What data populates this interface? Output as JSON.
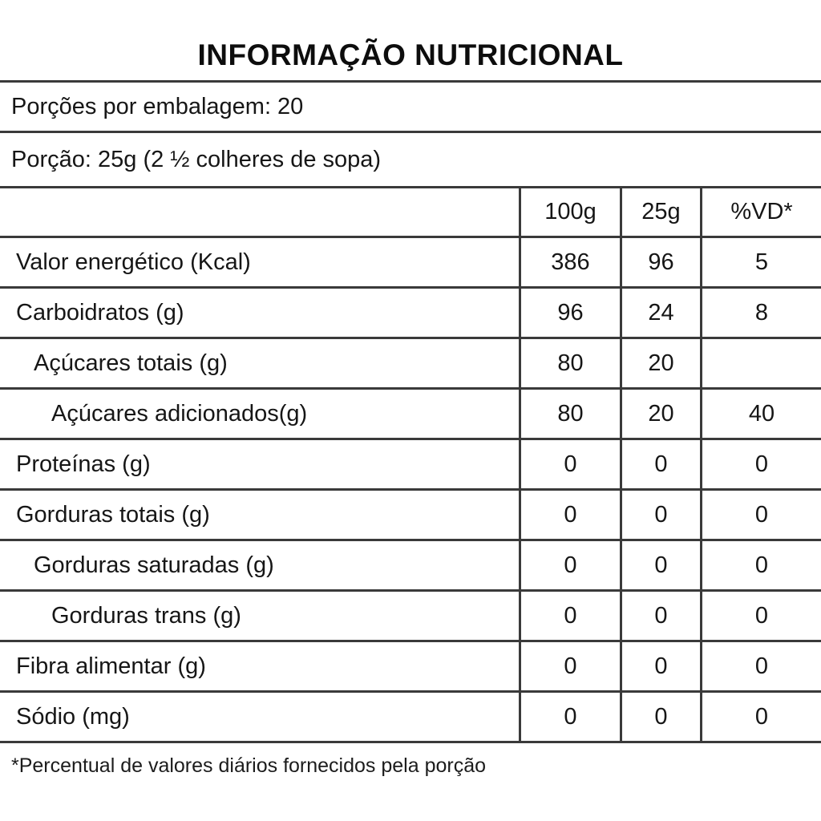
{
  "title": "INFORMAÇÃO NUTRICIONAL",
  "servings_line": "Porções por embalagem: 20",
  "portion_line": "Porção: 25g (2 ½ colheres de sopa)",
  "table": {
    "columns": {
      "c1": "100g",
      "c2": "25g",
      "c3": "%VD*"
    },
    "rows": [
      {
        "label": "Valor energético (Kcal)",
        "per100g": "386",
        "per25g": "96",
        "vd": "5"
      },
      {
        "label": "Carboidratos (g)",
        "per100g": "96",
        "per25g": "24",
        "vd": "8"
      },
      {
        "label": "Açúcares totais (g)",
        "per100g": "80",
        "per25g": "20",
        "vd": ""
      },
      {
        "label": "Açúcares adicionados(g)",
        "per100g": "80",
        "per25g": "20",
        "vd": "40"
      },
      {
        "label": "Proteínas (g)",
        "per100g": "0",
        "per25g": "0",
        "vd": "0"
      },
      {
        "label": "Gorduras totais (g)",
        "per100g": "0",
        "per25g": "0",
        "vd": "0"
      },
      {
        "label": "Gorduras saturadas (g)",
        "per100g": "0",
        "per25g": "0",
        "vd": "0"
      },
      {
        "label": "Gorduras trans (g)",
        "per100g": "0",
        "per25g": "0",
        "vd": "0"
      },
      {
        "label": "Fibra alimentar (g)",
        "per100g": "0",
        "per25g": "0",
        "vd": "0"
      },
      {
        "label": "Sódio (mg)",
        "per100g": "0",
        "per25g": "0",
        "vd": "0"
      }
    ]
  },
  "footnote": "*Percentual de valores diários fornecidos pela porção"
}
